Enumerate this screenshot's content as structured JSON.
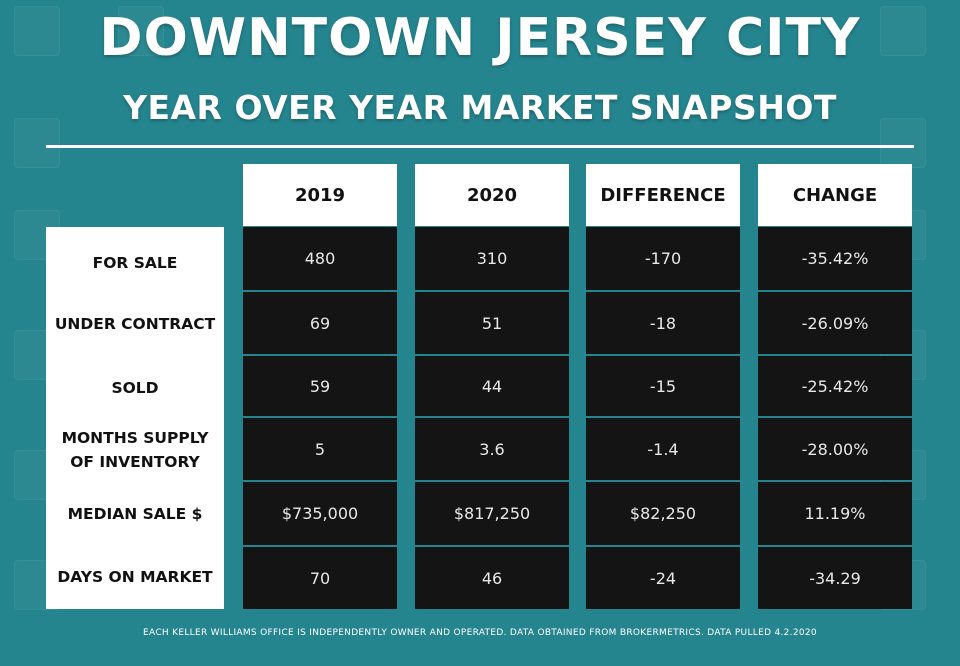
{
  "title": "DOWNTOWN JERSEY CITY",
  "subtitle": "YEAR OVER YEAR MARKET SNAPSHOT",
  "columns": [
    "2019",
    "2020",
    "DIFFERENCE",
    "CHANGE"
  ],
  "rows": [
    {
      "label": "FOR SALE",
      "values": [
        "480",
        "310",
        "-170",
        "-35.42%"
      ]
    },
    {
      "label": "UNDER CONTRACT",
      "values": [
        "69",
        "51",
        "-18",
        "-26.09%"
      ]
    },
    {
      "label": "SOLD",
      "values": [
        "59",
        "44",
        "-15",
        "-25.42%"
      ]
    },
    {
      "label": "MONTHS SUPPLY\nOF INVENTORY",
      "values": [
        "5",
        "3.6",
        "-1.4",
        "-28.00%"
      ]
    },
    {
      "label": "MEDIAN SALE $",
      "values": [
        "$735,000",
        "$817,250",
        "$82,250",
        "11.19%"
      ]
    },
    {
      "label": "DAYS ON MARKET",
      "values": [
        "70",
        "46",
        "-24",
        "-34.29"
      ]
    }
  ],
  "footer": "EACH KELLER WILLIAMS OFFICE IS INDEPENDENTLY OWNER AND OPERATED. DATA OBTAINED FROM BROKERMETRICS. DATA PULLED 4.2.2020",
  "colors": {
    "background": "#25858f",
    "cell": "#141414",
    "header": "#ffffff"
  }
}
